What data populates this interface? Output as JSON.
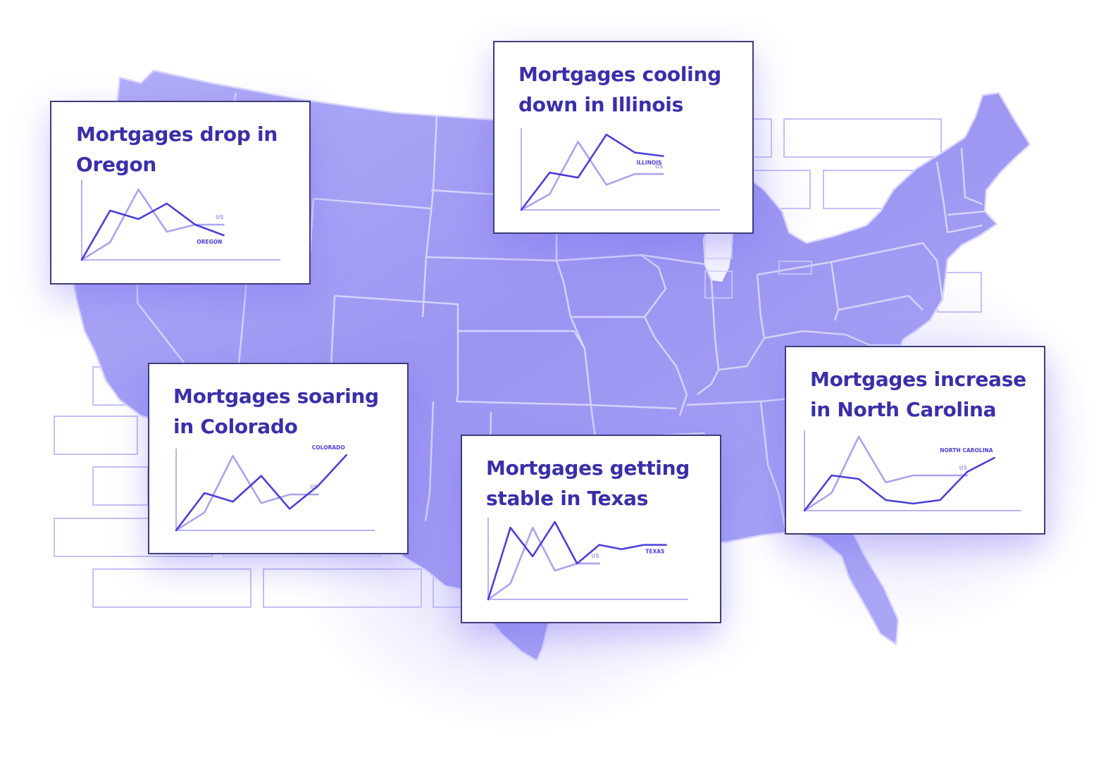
{
  "palette": {
    "accent": "#4b3fd6",
    "accent_dark": "#3a2fa8",
    "secondary": "#aaa4ee",
    "axis": "#b7b2f2",
    "map_fill": "#a8a2f4",
    "map_fill_light": "#bcb8f7",
    "map_border": "#d9d6ff"
  },
  "map": {
    "name": "United States",
    "labels": []
  },
  "cards": [
    {
      "id": "oregon",
      "title": "Mortgages drop in\nOregon",
      "chart_data": {
        "type": "line",
        "title": "Mortgages drop in Oregon",
        "x": [
          0,
          1,
          2,
          3,
          4,
          5,
          6
        ],
        "series": [
          {
            "name": "OREGON",
            "values": [
              0,
              70,
              58,
              80,
              50,
              35,
              null
            ],
            "color": "#4b3fd6"
          },
          {
            "name": "US",
            "values": [
              0,
              25,
              100,
              40,
              50,
              50,
              null
            ],
            "color": "#aaa4ee"
          }
        ],
        "xlim": [
          0,
          7
        ],
        "ylim": [
          0,
          110
        ],
        "grid": false
      }
    },
    {
      "id": "illinois",
      "title": "Mortgages cooling\ndown in Illinois",
      "chart_data": {
        "type": "line",
        "title": "Mortgages cooling down in Illinois",
        "x": [
          0,
          1,
          2,
          3,
          4,
          5,
          6
        ],
        "series": [
          {
            "name": "ILLINOIS",
            "values": [
              0,
              52,
              45,
              105,
              80,
              75,
              null
            ],
            "color": "#4b3fd6"
          },
          {
            "name": "US",
            "values": [
              0,
              22,
              95,
              35,
              50,
              50,
              null
            ],
            "color": "#aaa4ee"
          }
        ],
        "xlim": [
          0,
          7
        ],
        "ylim": [
          0,
          110
        ],
        "grid": false
      }
    },
    {
      "id": "colorado",
      "title": "Mortgages soaring\nin Colorado",
      "chart_data": {
        "type": "line",
        "title": "Mortgages soaring in Colorado",
        "x": [
          0,
          1,
          2,
          3,
          4,
          5,
          6
        ],
        "series": [
          {
            "name": "COLORADO",
            "values": [
              0,
              52,
              40,
              76,
              30,
              62,
              105
            ],
            "color": "#4b3fd6"
          },
          {
            "name": "US",
            "values": [
              0,
              25,
              104,
              38,
              50,
              50,
              null
            ],
            "color": "#aaa4ee"
          }
        ],
        "xlim": [
          0,
          7
        ],
        "ylim": [
          0,
          110
        ],
        "grid": false
      }
    },
    {
      "id": "texas",
      "title": "Mortgages getting\nstable in Texas",
      "chart_data": {
        "type": "line",
        "title": "Mortgages getting stable in Texas",
        "x": [
          0,
          1,
          2,
          3,
          4,
          5,
          6,
          7,
          8,
          9
        ],
        "series": [
          {
            "name": "TEXAS",
            "values": [
              0,
              100,
              60,
              108,
              50,
              76,
              70,
              76,
              76,
              null
            ],
            "color": "#4b3fd6"
          },
          {
            "name": "US",
            "values": [
              0,
              22,
              100,
              40,
              50,
              50,
              null,
              null,
              null,
              null
            ],
            "color": "#aaa4ee"
          }
        ],
        "xlim": [
          0,
          9
        ],
        "ylim": [
          0,
          110
        ],
        "grid": false
      }
    },
    {
      "id": "north-carolina",
      "title": "Mortgages increase\nin North Carolina",
      "chart_data": {
        "type": "line",
        "title": "Mortgages increase in North Carolina",
        "x": [
          0,
          1,
          2,
          3,
          4,
          5,
          6,
          7
        ],
        "series": [
          {
            "name": "NORTH CAROLINA",
            "values": [
              0,
              50,
              45,
              15,
              10,
              15,
              55,
              75
            ],
            "color": "#4b3fd6"
          },
          {
            "name": "US",
            "values": [
              0,
              25,
              105,
              40,
              50,
              50,
              50,
              null
            ],
            "color": "#aaa4ee"
          }
        ],
        "xlim": [
          0,
          8
        ],
        "ylim": [
          0,
          110
        ],
        "grid": false
      }
    }
  ]
}
